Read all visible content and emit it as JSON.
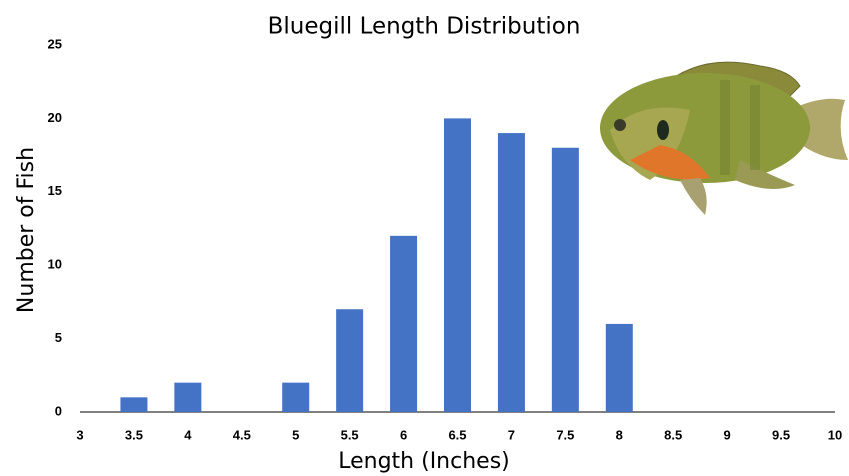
{
  "chart_data": {
    "type": "bar",
    "title": "Bluegill Length Distribution",
    "x_label": "Length (Inches)",
    "y_label": "Number of Fish",
    "categories": [
      "3",
      "3.5",
      "4",
      "4.5",
      "5",
      "5.5",
      "6",
      "6.5",
      "7",
      "7.5",
      "8",
      "8.5",
      "9",
      "9.5",
      "10"
    ],
    "values": [
      0,
      1,
      2,
      0,
      2,
      7,
      12,
      20,
      19,
      18,
      6,
      0,
      0,
      0,
      0
    ],
    "color": "#4472c4",
    "ylim": [
      0,
      25
    ],
    "yticks": [
      0,
      5,
      10,
      15,
      20,
      25
    ],
    "grid": false
  }
}
